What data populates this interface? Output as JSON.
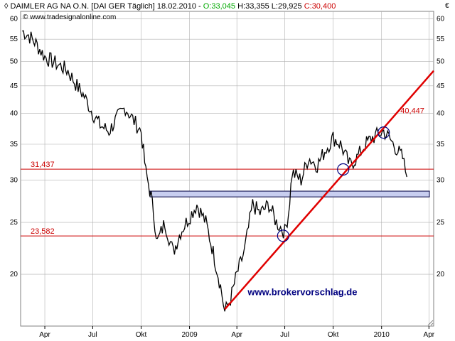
{
  "header": {
    "symbol_prefix": "◊",
    "instrument": "DAIMLER AG NA O.N. [DAI GER  Täglich] 18.02.2010 - ",
    "open": "O:33,045",
    "high": "H:33,355",
    "low": "L:29,925",
    "close": "C:30,400",
    "copyright": "© www.tradesignalonline.com",
    "currency": "€"
  },
  "colors": {
    "up": "#00aa00",
    "down": "#cc0000",
    "trend": "#e00000",
    "hline": "#cc0000",
    "zone_fill": "#c8cef0",
    "grid": "#b0b0b0",
    "price": "#000000",
    "watermark": "#000080"
  },
  "chart_data": {
    "type": "line",
    "title": "DAIMLER AG NA O.N.",
    "y_scale": "log",
    "ylim": [
      16,
      62
    ],
    "xlim": [
      "2008-02-15",
      "2010-04-10"
    ],
    "grid": true,
    "y_ticks": [
      20,
      25,
      30,
      35,
      40,
      45,
      50,
      55,
      60
    ],
    "x_ticks": [
      {
        "date": "2008-04-01",
        "label": "Apr"
      },
      {
        "date": "2008-07-01",
        "label": "Jul"
      },
      {
        "date": "2008-10-01",
        "label": "Okt"
      },
      {
        "date": "2009-01-01",
        "label": "2009"
      },
      {
        "date": "2009-04-01",
        "label": "Apr"
      },
      {
        "date": "2009-07-01",
        "label": "Jul"
      },
      {
        "date": "2009-10-01",
        "label": "Okt"
      },
      {
        "date": "2010-01-01",
        "label": "2010"
      },
      {
        "date": "2010-04-01",
        "label": "Apr"
      }
    ],
    "series": [
      {
        "name": "DAIMLER AG NA O.N.",
        "x": [
          "2008-02-18",
          "2008-03-01",
          "2008-03-15",
          "2008-04-01",
          "2008-04-15",
          "2008-05-01",
          "2008-05-15",
          "2008-06-01",
          "2008-06-15",
          "2008-07-01",
          "2008-07-15",
          "2008-08-01",
          "2008-08-15",
          "2008-09-01",
          "2008-09-15",
          "2008-10-01",
          "2008-10-10",
          "2008-10-20",
          "2008-11-01",
          "2008-11-15",
          "2008-12-01",
          "2008-12-15",
          "2009-01-05",
          "2009-01-15",
          "2009-02-01",
          "2009-02-15",
          "2009-03-01",
          "2009-03-09",
          "2009-03-20",
          "2009-04-01",
          "2009-04-15",
          "2009-05-01",
          "2009-05-15",
          "2009-06-01",
          "2009-06-15",
          "2009-07-01",
          "2009-07-08",
          "2009-07-15",
          "2009-08-01",
          "2009-08-15",
          "2009-09-01",
          "2009-09-15",
          "2009-10-01",
          "2009-10-15",
          "2009-11-01",
          "2009-11-15",
          "2009-12-01",
          "2009-12-15",
          "2010-01-05",
          "2010-01-15",
          "2010-02-01",
          "2010-02-10",
          "2010-02-18"
        ],
        "y": [
          57,
          56,
          54,
          51,
          50,
          49,
          48,
          45,
          43,
          40,
          38,
          37,
          39,
          41,
          39,
          37,
          31,
          28,
          23,
          25,
          22,
          24,
          26,
          27,
          25,
          22,
          19,
          17,
          18,
          20,
          22,
          27,
          26,
          27,
          25,
          24,
          26,
          31,
          30,
          33,
          32,
          34,
          36,
          35,
          32,
          33,
          35,
          36,
          37,
          36,
          34,
          33,
          30.4
        ]
      }
    ],
    "trendline": {
      "from": {
        "x": "2009-03-09",
        "y": 17.2
      },
      "to": {
        "x": "2010-04-10",
        "y": 48
      }
    },
    "horizontal_levels": [
      {
        "label": "31,437",
        "value": 31.437
      },
      {
        "label": "23,582",
        "value": 23.582
      }
    ],
    "resistance_zone": {
      "from_x": "2008-10-18",
      "to_x": "2010-04-10",
      "y_low": 27.9,
      "y_high": 28.6
    },
    "annotations": [
      {
        "text": "40,447",
        "x": "2010-02-15",
        "y": 40.447
      },
      {
        "text": "www.brokervorschlag.de",
        "x": "2009-05-01",
        "y": 18.5
      }
    ],
    "marked_points": [
      {
        "x": "2009-06-28",
        "y": 23.6
      },
      {
        "x": "2009-10-20",
        "y": 31.4
      },
      {
        "x": "2010-01-05",
        "y": 36.8
      }
    ]
  }
}
